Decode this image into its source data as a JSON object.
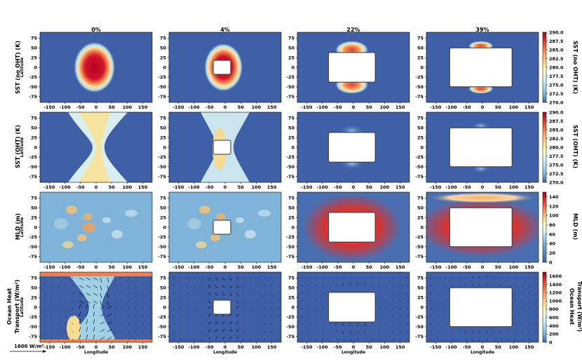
{
  "figure": {
    "column_titles": [
      "0%",
      "4%",
      "22%",
      "39%"
    ],
    "row_labels": [
      [
        "SST (no OHT) (K)"
      ],
      [
        "SST (OHT) (K)"
      ],
      [
        "MLD (m)"
      ],
      [
        "Ocean Heat",
        "Transport (W/m²)"
      ]
    ],
    "colorbar_labels": [
      [
        "SST (no OHT) (K)"
      ],
      [
        "SST (OHT) (K)"
      ],
      [
        "MLD (m)"
      ],
      [
        "Ocean Heat",
        "Transport (W/m²)"
      ]
    ],
    "ylabel": "Latitude",
    "xlabel": "Longitude",
    "quiver_key": "1600 W/m²",
    "colors": {
      "background_blue": "#3f5fa6",
      "warm_red": "#c0102a",
      "pale_yellow": "#f4e6a3",
      "pale_blue": "#c8e2ef",
      "continent_fill": "#ffffff"
    }
  },
  "chart_data": [
    {
      "type": "heatmap",
      "title": "0%",
      "row": "SST (no OHT) (K)",
      "x_ticks": [
        "-150",
        "-100",
        "-50",
        "0",
        "50",
        "100",
        "150"
      ],
      "y_ticks": [
        "75",
        "50",
        "25",
        "0",
        "-25",
        "-50",
        "-75"
      ],
      "xlim": [
        -180,
        180
      ],
      "ylim": [
        -90,
        90
      ],
      "continent": null
    },
    {
      "type": "heatmap",
      "title": "4%",
      "row": "SST (no OHT) (K)",
      "x_ticks": [
        "-150",
        "-100",
        "-50",
        "0",
        "50",
        "100",
        "150"
      ],
      "y_ticks": [
        "75",
        "50",
        "25",
        "0",
        "-25",
        "-50",
        "-75"
      ],
      "continent": {
        "lon": [
          -38,
          18
        ],
        "lat": [
          -18,
          18
        ]
      }
    },
    {
      "type": "heatmap",
      "title": "22%",
      "row": "SST (no OHT) (K)",
      "continent": {
        "lon": [
          -80,
          70
        ],
        "lat": [
          -38,
          38
        ]
      }
    },
    {
      "type": "heatmap",
      "title": "39%",
      "row": "SST (no OHT) (K)",
      "continent": {
        "lon": [
          -105,
          95
        ],
        "lat": [
          -50,
          50
        ]
      }
    },
    {
      "type": "colorbar",
      "label": "SST (no OHT) (K)",
      "ticks": [
        "290.0",
        "287.5",
        "285.0",
        "282.5",
        "280.0",
        "277.5",
        "275.0",
        "272.5",
        "270.0"
      ],
      "range": [
        270,
        290
      ]
    },
    {
      "type": "colorbar",
      "label": "SST (OHT) (K)",
      "ticks": [
        "290.0",
        "287.5",
        "285.0",
        "282.5",
        "280.0",
        "277.5",
        "275.0",
        "272.5",
        "270.0"
      ],
      "range": [
        270,
        290
      ]
    },
    {
      "type": "colorbar",
      "label": "MLD (m)",
      "ticks": [
        "140",
        "120",
        "100",
        "80",
        "60",
        "40",
        "20",
        "0"
      ],
      "range": [
        0,
        150
      ]
    },
    {
      "type": "colorbar",
      "label": "Ocean Heat Transport (W/m²)",
      "ticks": [
        "1600",
        "1400",
        "1200",
        "1000",
        "800",
        "600",
        "400",
        "200",
        "0"
      ],
      "range": [
        0,
        1700
      ]
    }
  ]
}
